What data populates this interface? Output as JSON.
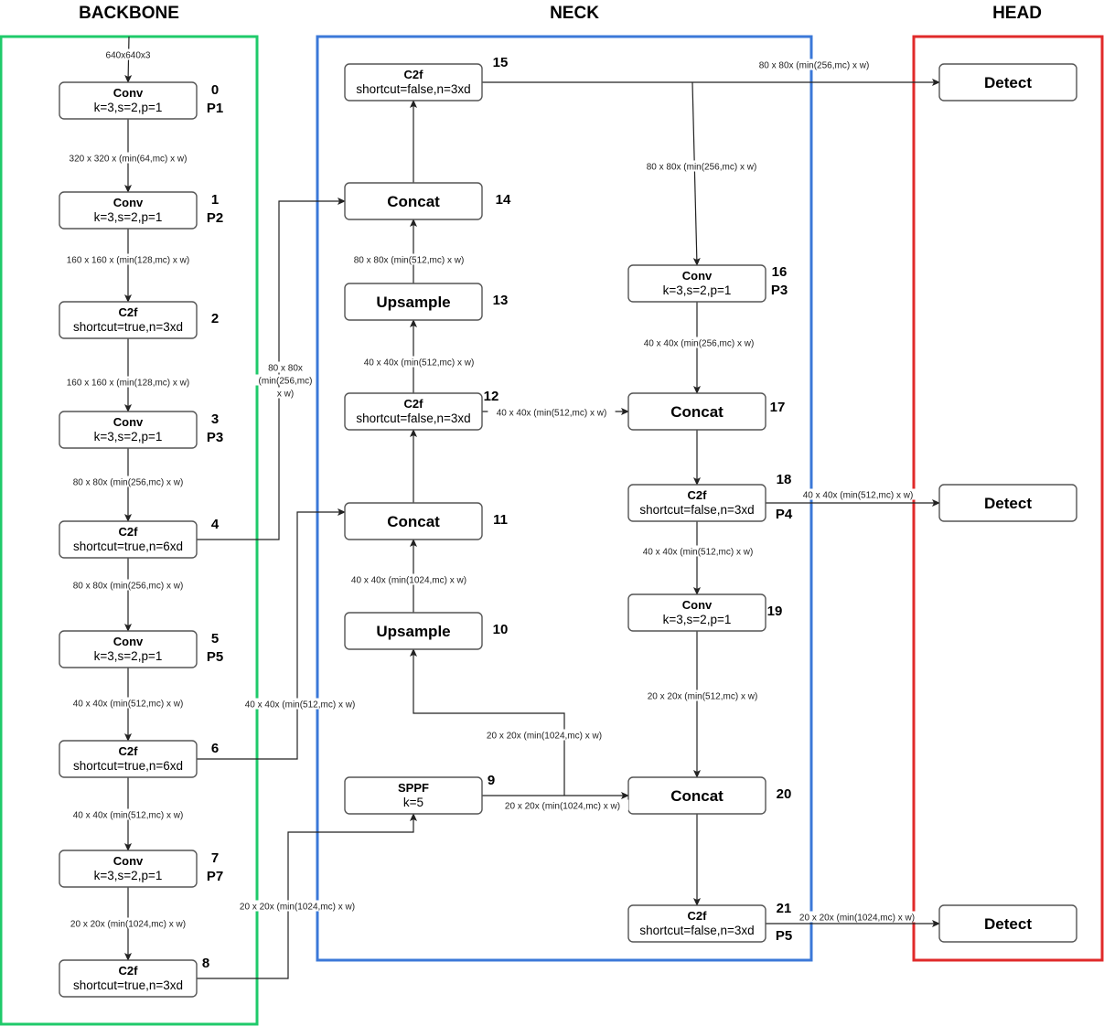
{
  "sections": [
    {
      "id": "backbone",
      "title": "BACKBONE",
      "color": "#1fca6a"
    },
    {
      "id": "neck",
      "title": "NECK",
      "color": "#3b78d8"
    },
    {
      "id": "head",
      "title": "HEAD",
      "color": "#e02a2a"
    }
  ],
  "nodes": [
    {
      "id": "n0",
      "title": "Conv",
      "sub": "k=3,s=2,p=1",
      "index": "0",
      "p": "P1"
    },
    {
      "id": "n1",
      "title": "Conv",
      "sub": "k=3,s=2,p=1",
      "index": "1",
      "p": "P2"
    },
    {
      "id": "n2",
      "title": "C2f",
      "sub": "shortcut=true,n=3xd",
      "index": "2",
      "p": ""
    },
    {
      "id": "n3",
      "title": "Conv",
      "sub": "k=3,s=2,p=1",
      "index": "3",
      "p": "P3"
    },
    {
      "id": "n4",
      "title": "C2f",
      "sub": "shortcut=true,n=6xd",
      "index": "4",
      "p": ""
    },
    {
      "id": "n5",
      "title": "Conv",
      "sub": "k=3,s=2,p=1",
      "index": "5",
      "p": "P5"
    },
    {
      "id": "n6",
      "title": "C2f",
      "sub": "shortcut=true,n=6xd",
      "index": "6",
      "p": ""
    },
    {
      "id": "n7",
      "title": "Conv",
      "sub": "k=3,s=2,p=1",
      "index": "7",
      "p": "P7"
    },
    {
      "id": "n8",
      "title": "C2f",
      "sub": "shortcut=true,n=3xd",
      "index": "8",
      "p": ""
    },
    {
      "id": "n9",
      "title": "SPPF",
      "sub": "k=5",
      "index": "9",
      "p": ""
    },
    {
      "id": "n10",
      "title": "Upsample",
      "sub": "",
      "index": "10",
      "p": ""
    },
    {
      "id": "n11",
      "title": "Concat",
      "sub": "",
      "index": "11",
      "p": ""
    },
    {
      "id": "n12",
      "title": "C2f",
      "sub": "shortcut=false,n=3xd",
      "index": "12",
      "p": ""
    },
    {
      "id": "n13",
      "title": "Upsample",
      "sub": "",
      "index": "13",
      "p": ""
    },
    {
      "id": "n14",
      "title": "Concat",
      "sub": "",
      "index": "14",
      "p": ""
    },
    {
      "id": "n15",
      "title": "C2f",
      "sub": "shortcut=false,n=3xd",
      "index": "15",
      "p": ""
    },
    {
      "id": "n16",
      "title": "Conv",
      "sub": "k=3,s=2,p=1",
      "index": "16",
      "p": "P3"
    },
    {
      "id": "n17",
      "title": "Concat",
      "sub": "",
      "index": "17",
      "p": ""
    },
    {
      "id": "n18",
      "title": "C2f",
      "sub": "shortcut=false,n=3xd",
      "index": "18",
      "p": "P4"
    },
    {
      "id": "n19",
      "title": "Conv",
      "sub": "k=3,s=2,p=1",
      "index": "19",
      "p": ""
    },
    {
      "id": "n20",
      "title": "Concat",
      "sub": "",
      "index": "20",
      "p": ""
    },
    {
      "id": "n21",
      "title": "C2f",
      "sub": "shortcut=false,n=3xd",
      "index": "21",
      "p": "P5"
    },
    {
      "id": "d1",
      "title": "Detect",
      "sub": "",
      "index": "",
      "p": ""
    },
    {
      "id": "d2",
      "title": "Detect",
      "sub": "",
      "index": "",
      "p": ""
    },
    {
      "id": "d3",
      "title": "Detect",
      "sub": "",
      "index": "",
      "p": ""
    }
  ],
  "edges": [
    {
      "from": "input",
      "to": "n0",
      "label": [
        "640x640x3"
      ]
    },
    {
      "from": "n0",
      "to": "n1",
      "label": [
        "320 x 320 x (min(64,mc) x w)"
      ]
    },
    {
      "from": "n1",
      "to": "n2",
      "label": [
        "160 x 160 x (min(128,mc) x w)"
      ]
    },
    {
      "from": "n2",
      "to": "n3",
      "label": [
        "160 x 160 x (min(128,mc) x w)"
      ]
    },
    {
      "from": "n3",
      "to": "n4",
      "label": [
        "80 x 80x (min(256,mc) x w)"
      ]
    },
    {
      "from": "n4",
      "to": "n5",
      "label": [
        "80 x 80x (min(256,mc) x w)"
      ]
    },
    {
      "from": "n5",
      "to": "n6",
      "label": [
        "40 x 40x (min(512,mc) x w)"
      ]
    },
    {
      "from": "n6",
      "to": "n7",
      "label": [
        "40 x 40x (min(512,mc) x w)"
      ]
    },
    {
      "from": "n7",
      "to": "n8",
      "label": [
        "20 x 20x (min(1024,mc) x w)"
      ]
    },
    {
      "from": "n4",
      "to": "n14",
      "label": [
        "80 x 80x",
        "(min(256,mc)",
        "x w)"
      ]
    },
    {
      "from": "n6",
      "to": "n11",
      "label": [
        "40 x 40x (min(512,mc) x w)"
      ]
    },
    {
      "from": "n8",
      "to": "n9",
      "label": [
        "20 x 20x (min(1024,mc) x w)"
      ]
    },
    {
      "from": "n9",
      "to": "n20",
      "label": [
        "20 x 20x (min(1024,mc) x w)"
      ]
    },
    {
      "from": "n9",
      "to": "n10",
      "label": [
        "20 x 20x (min(1024,mc) x w)"
      ]
    },
    {
      "from": "n10",
      "to": "n11",
      "label": [
        "40 x 40x (min(1024,mc) x w)"
      ]
    },
    {
      "from": "n11",
      "to": "n12",
      "label": []
    },
    {
      "from": "n12",
      "to": "n13",
      "label": [
        "40 x 40x (min(512,mc) x w)"
      ]
    },
    {
      "from": "n13",
      "to": "n14",
      "label": [
        "80 x 80x (min(512,mc) x w)"
      ]
    },
    {
      "from": "n14",
      "to": "n15",
      "label": []
    },
    {
      "from": "n15",
      "to": "d1",
      "label": [
        "80 x 80x (min(256,mc) x w)"
      ]
    },
    {
      "from": "n15",
      "to": "n16",
      "label": [
        "80 x 80x (min(256,mc) x w)"
      ]
    },
    {
      "from": "n12",
      "to": "n17",
      "label": [
        "40 x 40x (min(512,mc) x w)"
      ]
    },
    {
      "from": "n16",
      "to": "n17",
      "label": [
        "40 x 40x (min(256,mc) x w)"
      ]
    },
    {
      "from": "n17",
      "to": "n18",
      "label": []
    },
    {
      "from": "n18",
      "to": "d2",
      "label": [
        "40 x 40x (min(512,mc) x w)"
      ]
    },
    {
      "from": "n18",
      "to": "n19",
      "label": [
        "40 x 40x (min(512,mc) x w)"
      ]
    },
    {
      "from": "n19",
      "to": "n20",
      "label": [
        "20 x 20x (min(512,mc) x w)"
      ]
    },
    {
      "from": "n20",
      "to": "n21",
      "label": []
    },
    {
      "from": "n21",
      "to": "d3",
      "label": [
        "20 x 20x (min(1024,mc) x w)"
      ]
    }
  ]
}
